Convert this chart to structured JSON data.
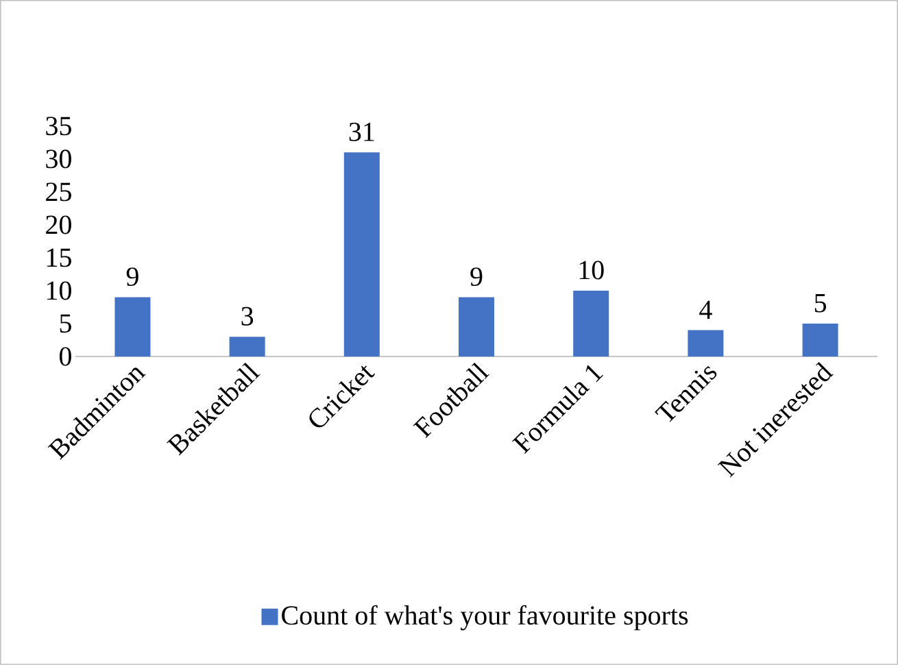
{
  "chart_data": {
    "type": "bar",
    "categories": [
      "Badminton",
      "Basketball",
      "Cricket",
      "Football",
      "Formula 1",
      "Tennis",
      "Not inerested"
    ],
    "series": [
      {
        "name": "Count of what's your favourite sports",
        "color": "#4472c4",
        "values": [
          9,
          3,
          31,
          9,
          10,
          4,
          5
        ]
      }
    ],
    "ylim": [
      0,
      35
    ],
    "yticks": [
      0,
      5,
      10,
      15,
      20,
      25,
      30,
      35
    ],
    "data_labels": true,
    "grid": false,
    "legend": "bottom"
  }
}
